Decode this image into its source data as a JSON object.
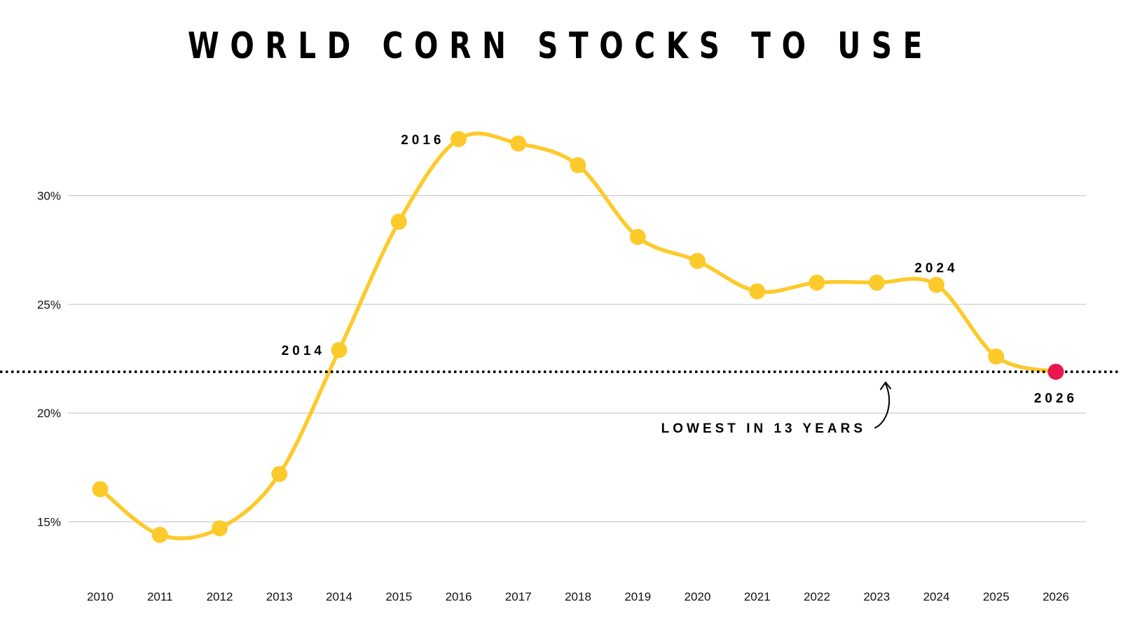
{
  "chart_data": {
    "type": "line",
    "title": "WORLD CORN STOCKS TO USE",
    "xlabel": "",
    "ylabel": "",
    "x": [
      2010,
      2011,
      2012,
      2013,
      2014,
      2015,
      2016,
      2017,
      2018,
      2019,
      2020,
      2021,
      2022,
      2023,
      2024,
      2025,
      2026
    ],
    "x_labels": [
      "2010",
      "2011",
      "2012",
      "2013",
      "2014",
      "2015",
      "2016",
      "2017",
      "2018",
      "2019",
      "2020",
      "2021",
      "2022",
      "2023",
      "2024",
      "2025",
      "2026"
    ],
    "series": [
      {
        "name": "World corn stocks-to-use",
        "values": [
          16.5,
          14.4,
          14.7,
          17.2,
          22.9,
          28.8,
          32.6,
          32.4,
          31.4,
          28.1,
          27.0,
          25.6,
          26.0,
          26.0,
          25.9,
          22.6,
          21.9
        ]
      }
    ],
    "y_ticks": [
      15,
      20,
      25,
      30
    ],
    "y_tick_labels": [
      "15%",
      "20%",
      "25%",
      "30%"
    ],
    "ylim": [
      12.6,
      35.2
    ],
    "grid": true,
    "reference_line": {
      "value": 21.9,
      "style": "dotted"
    },
    "highlight_index": 16,
    "point_labels": [
      {
        "index": 4,
        "text": "2014",
        "position": "left"
      },
      {
        "index": 6,
        "text": "2016",
        "position": "left"
      },
      {
        "index": 14,
        "text": "2024",
        "position": "above"
      },
      {
        "index": 16,
        "text": "2026",
        "position": "below"
      }
    ],
    "annotation": "LOWEST IN 13 YEARS",
    "colors": {
      "line": "#fdca2c",
      "point": "#fdca2c",
      "highlight": "#e8174d",
      "grid": "#c8c8c8",
      "reference": "#000000"
    }
  }
}
